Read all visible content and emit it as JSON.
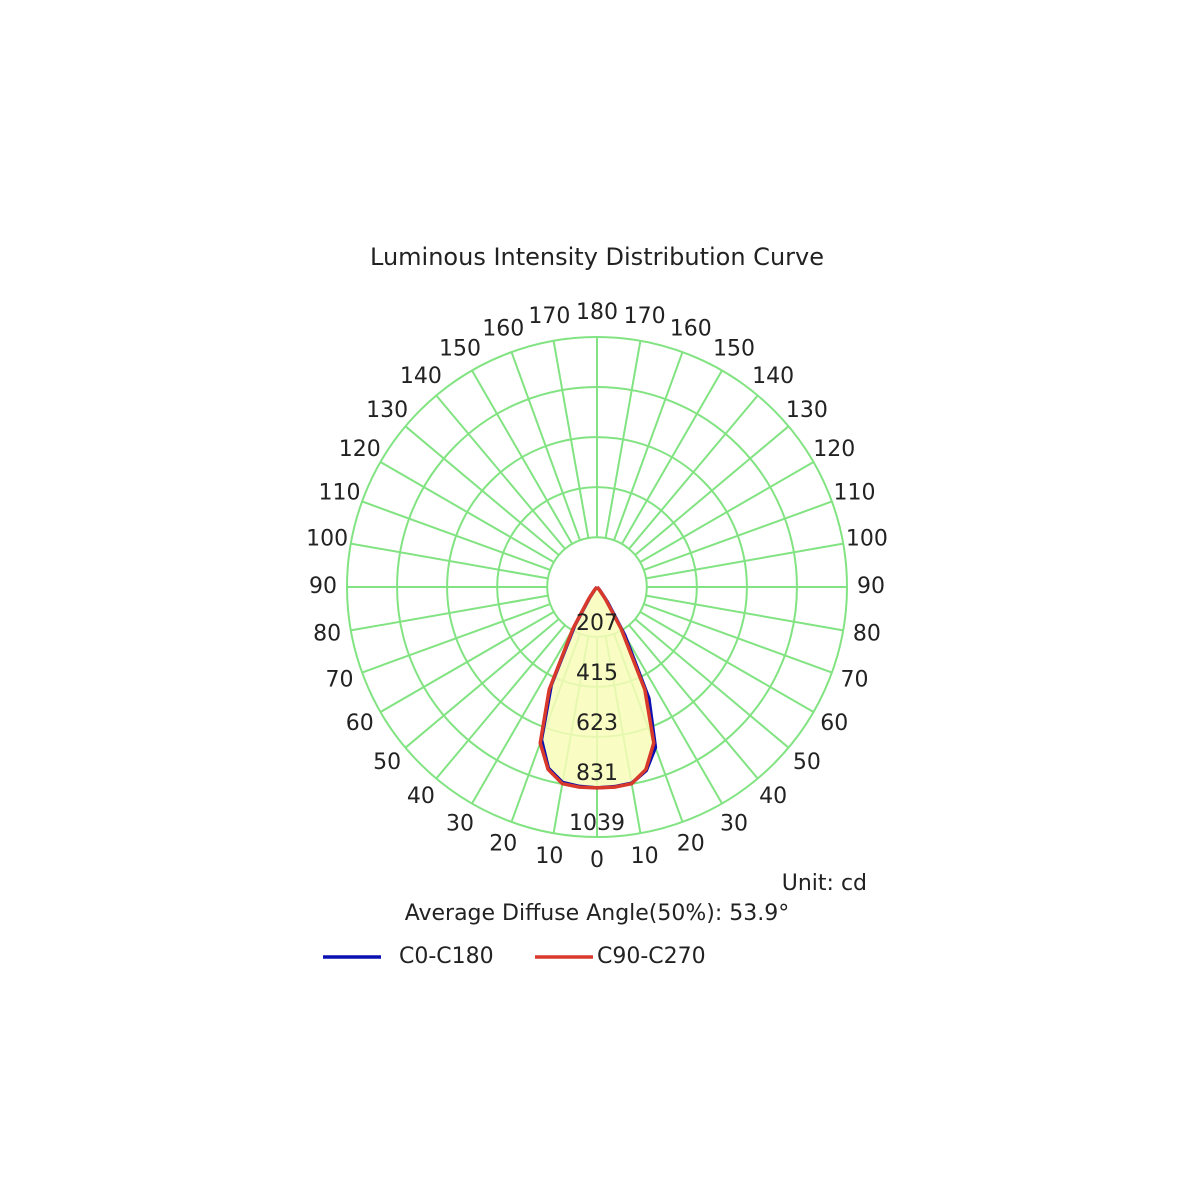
{
  "chart_data": {
    "type": "polar",
    "title": "Luminous Intensity Distribution Curve",
    "unit_label": "Unit: cd",
    "note": "Average Diffuse Angle(50%): 53.9°",
    "x": [
      -45,
      -40,
      -35,
      -30,
      -25,
      -20,
      -15,
      -10,
      -5,
      0,
      5,
      10,
      15,
      20,
      25,
      30,
      35,
      40,
      45
    ],
    "series": [
      {
        "name": "C0-C180",
        "color": "#0b10b0",
        "values": [
          0,
          12,
          50,
          185,
          450,
          675,
          780,
          825,
          832,
          835,
          833,
          828,
          790,
          710,
          510,
          230,
          75,
          20,
          0
        ]
      },
      {
        "name": "C90-C270",
        "color": "#d8392b",
        "values": [
          0,
          15,
          60,
          200,
          470,
          690,
          785,
          830,
          835,
          835,
          835,
          830,
          785,
          690,
          470,
          200,
          60,
          15,
          0
        ]
      }
    ],
    "fill_color": "#f8fbb8",
    "grid_color": "#82e382",
    "rlim": [
      0,
      1039
    ],
    "rticks": [
      207,
      415,
      623,
      831,
      1039
    ],
    "thetaticks": [
      0,
      10,
      20,
      30,
      40,
      50,
      60,
      70,
      80,
      90,
      100,
      110,
      120,
      130,
      140,
      150,
      160,
      170,
      180
    ],
    "grid": true
  }
}
